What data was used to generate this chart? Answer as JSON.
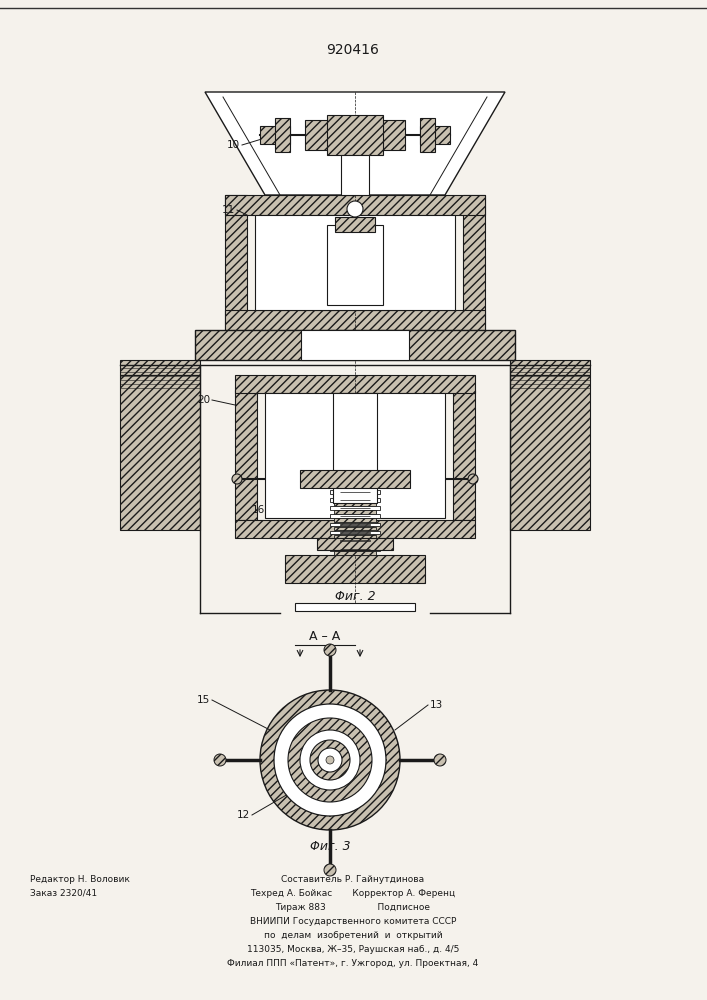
{
  "patent_number": "920416",
  "fig2_caption": "Φиг. 2",
  "fig3_caption": "Φиг. 3",
  "section_label": "A – A",
  "bg_color": "#f5f2ec",
  "line_color": "#1a1a1a",
  "hatch_color": "#1a1a1a",
  "footer_col1_line1": "Редактор Н. Воловик",
  "footer_col1_line2": "Заказ 2320/41",
  "footer_center_line1": "Составитель Р. Гайнутдинова",
  "footer_center_line2": "Техред А. Бойкас",
  "footer_center_line3": "Тираж 883",
  "footer_center_line4": "ВНИИПИ Государственного комитета СССР",
  "footer_center_line5": "по  делам  изобретений  и  открытий",
  "footer_center_line6": "113035, Москва, Ж–35, Раушская наб., д. 4/5",
  "footer_center_line7": "Филиал ППП «Патент», г. Ужгород, ул. Проектная, 4",
  "footer_col3_line1": "Корректор А. Ференц",
  "footer_col3_line2": "Подписное"
}
